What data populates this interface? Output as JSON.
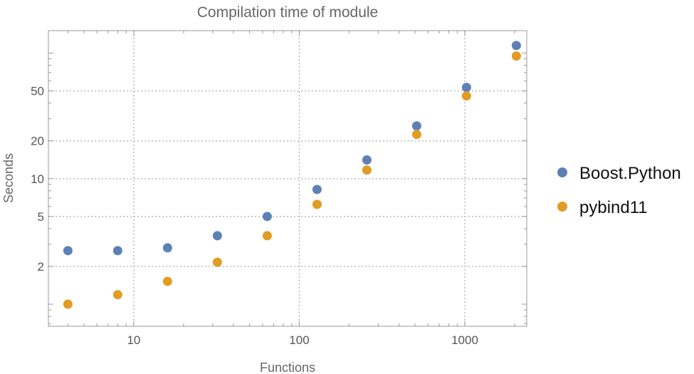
{
  "chart_data": {
    "type": "scatter",
    "title": "Compilation time of module",
    "xlabel": "Functions",
    "ylabel": "Seconds",
    "x_scale": "log",
    "y_scale": "log",
    "xlim": [
      3.05,
      2366
    ],
    "ylim": [
      0.667,
      151
    ],
    "x_ticks": [
      10,
      100,
      1000
    ],
    "x_tick_labels": [
      "10",
      "100",
      "1000"
    ],
    "y_ticks": [
      2,
      5,
      10,
      20,
      50
    ],
    "y_tick_labels": [
      "2",
      "5",
      "10",
      "20",
      "50"
    ],
    "grid": "dotted at major ticks",
    "legend_position": "right",
    "x": [
      4,
      8,
      16,
      32,
      64,
      128,
      256,
      512,
      1024,
      2048
    ],
    "series": [
      {
        "name": "Boost.Python",
        "color": "#5E81B5",
        "values": [
          2.67,
          2.67,
          2.81,
          3.51,
          5.0,
          8.2,
          14.1,
          26.3,
          53.3,
          115
        ]
      },
      {
        "name": "pybind11",
        "color": "#E19C24",
        "values": [
          1.0,
          1.19,
          1.52,
          2.16,
          3.51,
          6.24,
          11.7,
          22.5,
          45.6,
          94.8
        ]
      }
    ]
  }
}
